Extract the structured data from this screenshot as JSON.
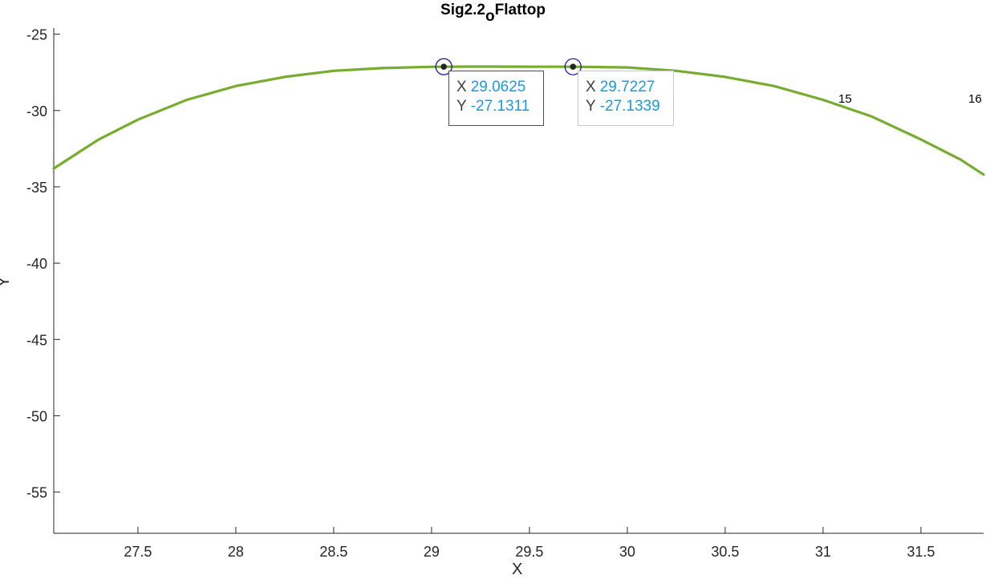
{
  "chart_data": {
    "type": "line",
    "title_main": "Sig2.2",
    "title_sub": "o",
    "title_rest": "Flattop",
    "xlabel": "X",
    "ylabel": "Y",
    "xlim": [
      27.07,
      31.82
    ],
    "ylim": [
      -57.7,
      -24.6
    ],
    "xticks": [
      27.5,
      28,
      28.5,
      29,
      29.5,
      30,
      30.5,
      31,
      31.5
    ],
    "xtick_labels": [
      "27.5",
      "28",
      "28.5",
      "29",
      "29.5",
      "30",
      "30.5",
      "31",
      "31.5"
    ],
    "yticks": [
      -25,
      -30,
      -35,
      -40,
      -45,
      -50,
      -55
    ],
    "ytick_labels": [
      "-25",
      "-30",
      "-35",
      "-40",
      "-45",
      "-50",
      "-55"
    ],
    "grid": false,
    "series": [
      {
        "color": "#77ac30",
        "x": [
          27.07,
          27.3,
          27.5,
          27.75,
          28.0,
          28.25,
          28.5,
          28.75,
          29.0,
          29.0625,
          29.25,
          29.5,
          29.7227,
          30.0,
          30.25,
          30.5,
          30.75,
          31.0,
          31.25,
          31.5,
          31.7,
          31.82
        ],
        "y": [
          -33.8,
          -31.9,
          -30.6,
          -29.3,
          -28.4,
          -27.8,
          -27.4,
          -27.22,
          -27.14,
          -27.1311,
          -27.12,
          -27.13,
          -27.1339,
          -27.18,
          -27.4,
          -27.8,
          -28.4,
          -29.3,
          -30.4,
          -31.9,
          -33.2,
          -34.2
        ]
      }
    ],
    "datatips": [
      {
        "x_key": "X",
        "x_value": "29.0625",
        "y_key": "Y",
        "y_value": "-27.1311",
        "x": 29.0625,
        "y": -27.1311
      },
      {
        "x_key": "X",
        "x_value": "29.7227",
        "y_key": "Y",
        "y_value": "-27.1339",
        "x": 29.7227,
        "y": -27.1339
      }
    ],
    "annotations": [
      {
        "text": "15",
        "x": 31.1,
        "y": -29.3
      },
      {
        "text": "16",
        "x": 31.77,
        "y": -29.3
      }
    ]
  },
  "colors": {
    "axis": "#262626",
    "line": "#77ac30",
    "marker_ring": "#1a1aa8",
    "marker_dot": "#262626",
    "value_text": "#1a9ae0"
  }
}
